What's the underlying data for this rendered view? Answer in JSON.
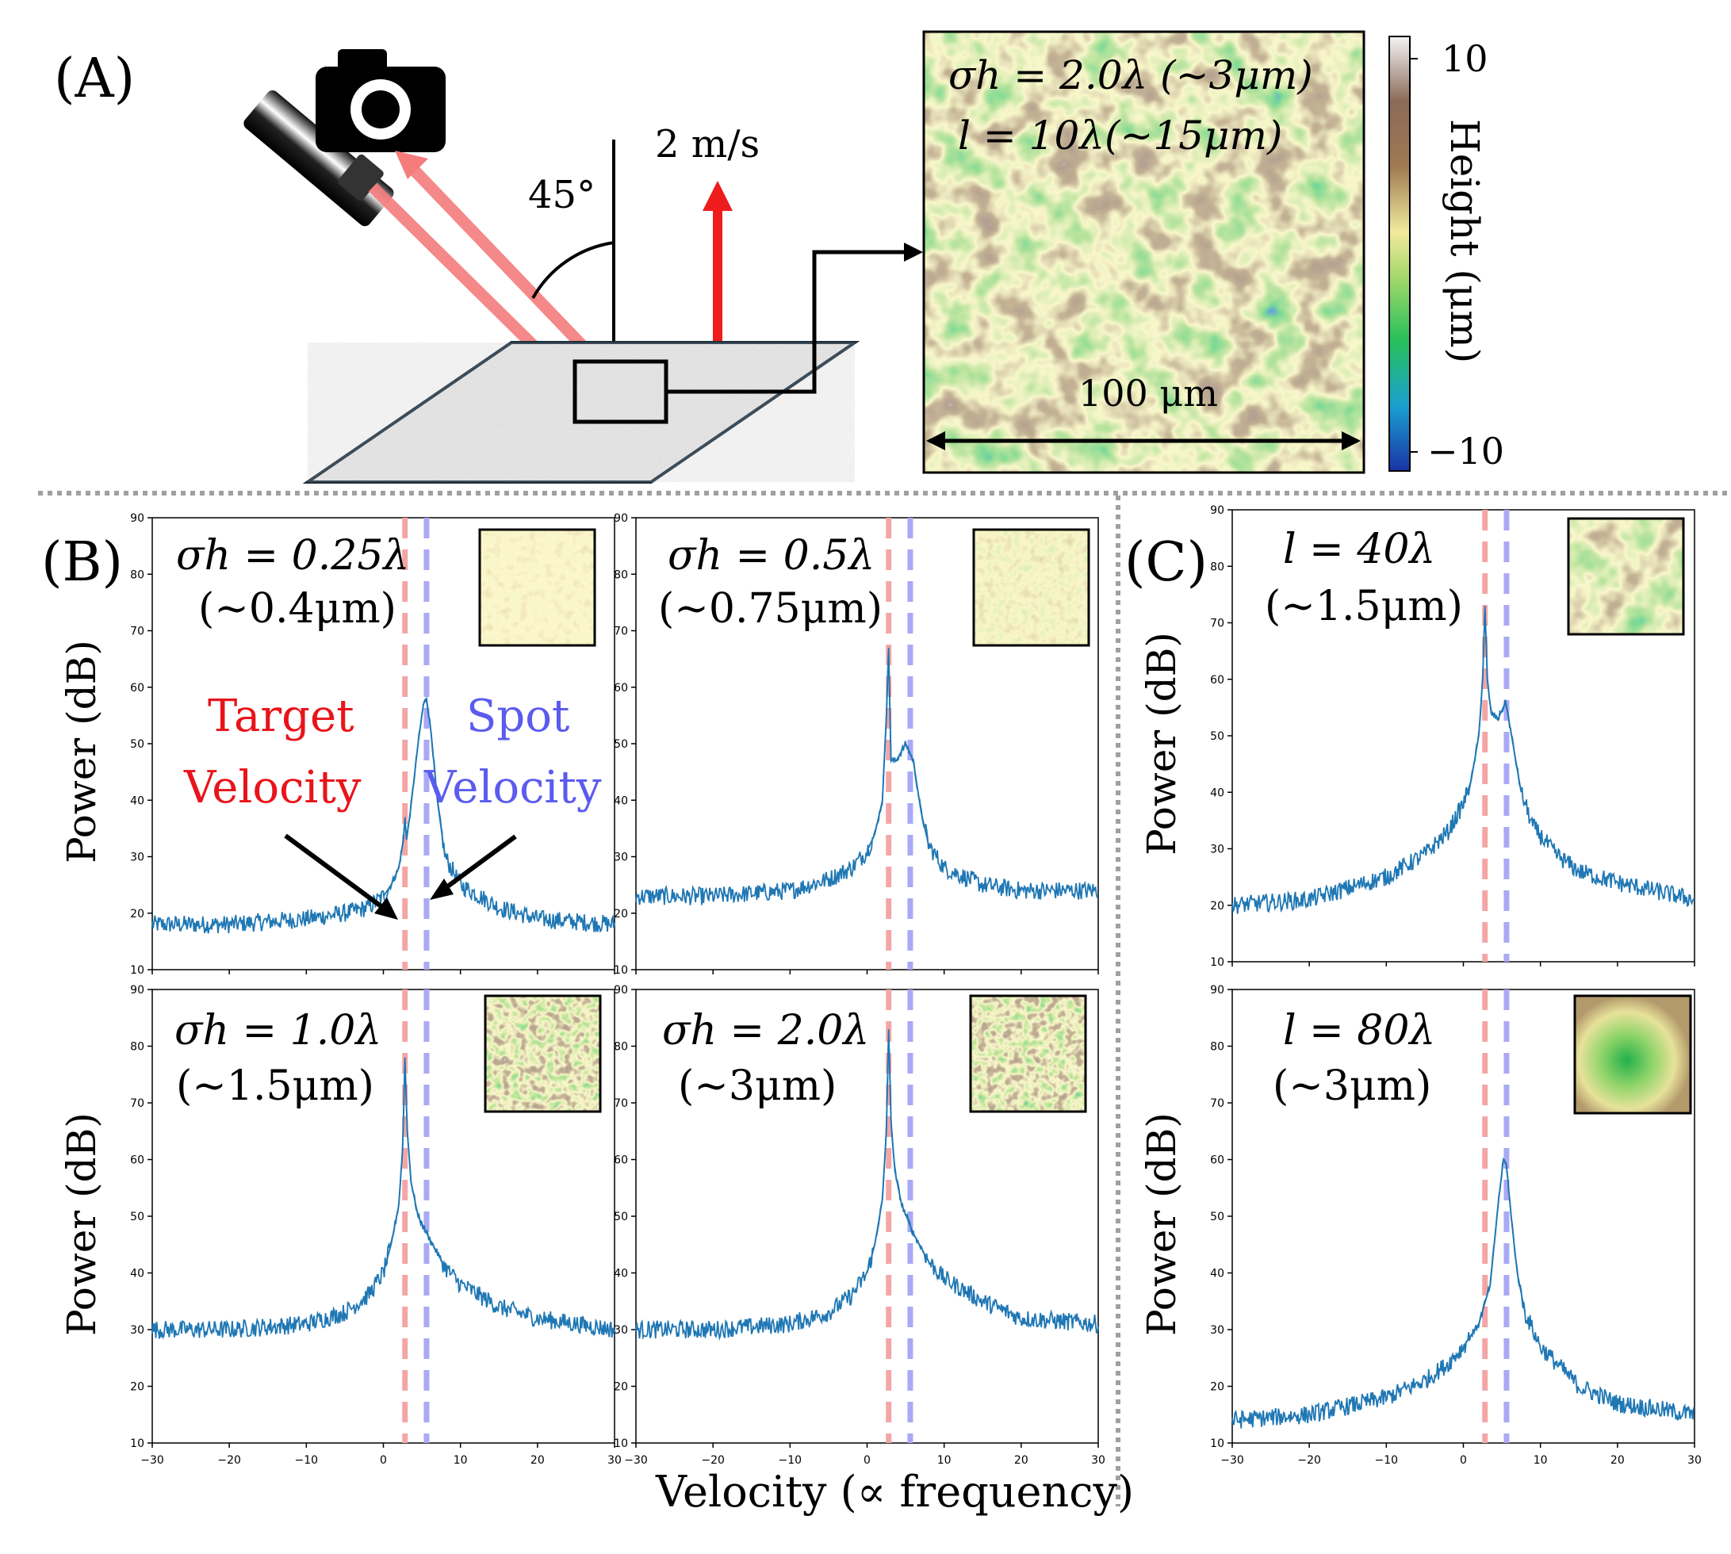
{
  "panel_labels": {
    "a": "(A)",
    "b": "(B)",
    "c": "(C)"
  },
  "setup": {
    "angle": "45°",
    "velocity": "2 m/s",
    "surface_map": {
      "line1": "σh = 2.0λ (~3μm)",
      "line2": "l = 10λ(~15μm)",
      "scale": "100 μm",
      "colorbar_label": "Height (μm)",
      "colorbar_max": "10",
      "colorbar_min": "−10"
    }
  },
  "annotations": {
    "target_1": "Target",
    "target_2": "Velocity",
    "spot_1": "Spot",
    "spot_2": "Velocity"
  },
  "colors": {
    "signal": "#1f77b4",
    "target": "#f4a6a6",
    "spot": "#a9a9f5",
    "target_text": "#e8141a",
    "spot_text": "#5b5bef"
  },
  "xlabel": "Velocity (∝ frequency)",
  "ylabel": "Power (dB)",
  "chart_data": [
    {
      "type": "line",
      "id": "b1",
      "text1": "σh = 0.25λ",
      "text2": "(~0.4μm)",
      "xlim": [
        -30,
        30
      ],
      "ylim": [
        10,
        90
      ],
      "xticks": [
        -30,
        -20,
        -10,
        0,
        10,
        20,
        30
      ],
      "yticks": [
        10,
        20,
        30,
        40,
        50,
        60,
        70,
        80,
        90
      ],
      "target_velocity": 2.8,
      "spot_velocity": 5.6,
      "series": [
        {
          "x": [
            -30,
            -20,
            -10,
            -5,
            -2,
            0,
            1,
            2,
            2.6,
            2.8,
            3.0,
            3.5,
            4.5,
            5.2,
            5.6,
            6.2,
            7,
            8,
            10,
            15,
            20,
            30
          ],
          "values": [
            18,
            18,
            19,
            20,
            21,
            23,
            25,
            28,
            33,
            37,
            33,
            38,
            50,
            57,
            58,
            52,
            40,
            30,
            25,
            21,
            19,
            18
          ]
        }
      ]
    },
    {
      "type": "line",
      "id": "b2",
      "text1": "σh = 0.5λ",
      "text2": "(~0.75μm)",
      "xlim": [
        -30,
        30
      ],
      "ylim": [
        10,
        90
      ],
      "xticks": [
        -30,
        -20,
        -10,
        0,
        10,
        20,
        30
      ],
      "yticks": [
        10,
        20,
        30,
        40,
        50,
        60,
        70,
        80,
        90
      ],
      "target_velocity": 2.8,
      "spot_velocity": 5.6,
      "series": [
        {
          "x": [
            -30,
            -20,
            -10,
            -5,
            -2,
            0,
            1,
            2,
            2.5,
            2.8,
            3.1,
            3.8,
            5,
            6,
            7,
            8,
            10,
            15,
            20,
            30
          ],
          "values": [
            23,
            23,
            24,
            26,
            28,
            31,
            34,
            40,
            55,
            67,
            47,
            47,
            50,
            47,
            38,
            32,
            28,
            25,
            24,
            24
          ]
        }
      ]
    },
    {
      "type": "line",
      "id": "b3",
      "text1": "σh = 1.0λ",
      "text2": "(~1.5μm)",
      "xlim": [
        -30,
        30
      ],
      "ylim": [
        10,
        90
      ],
      "xticks": [
        -30,
        -20,
        -10,
        0,
        10,
        20,
        30
      ],
      "yticks": [
        10,
        20,
        30,
        40,
        50,
        60,
        70,
        80,
        90
      ],
      "target_velocity": 2.8,
      "spot_velocity": 5.6,
      "series": [
        {
          "x": [
            -30,
            -20,
            -10,
            -5,
            -2,
            0,
            1,
            2,
            2.5,
            2.8,
            3.1,
            3.6,
            4.5,
            6,
            8,
            10,
            15,
            20,
            30
          ],
          "values": [
            30,
            30,
            31,
            33,
            36,
            40,
            45,
            52,
            62,
            78,
            65,
            56,
            50,
            46,
            41,
            38,
            34,
            32,
            30
          ]
        }
      ]
    },
    {
      "type": "line",
      "id": "b4",
      "text1": "σh = 2.0λ",
      "text2": "(~3μm)",
      "xlim": [
        -30,
        30
      ],
      "ylim": [
        10,
        90
      ],
      "xticks": [
        -30,
        -20,
        -10,
        0,
        10,
        20,
        30
      ],
      "yticks": [
        10,
        20,
        30,
        40,
        50,
        60,
        70,
        80,
        90
      ],
      "target_velocity": 2.8,
      "spot_velocity": 5.6,
      "series": [
        {
          "x": [
            -30,
            -20,
            -10,
            -5,
            -2,
            0,
            1,
            2,
            2.5,
            2.8,
            3.1,
            3.6,
            4.5,
            6,
            8,
            10,
            15,
            20,
            30
          ],
          "values": [
            30,
            30,
            31,
            33,
            36,
            40,
            45,
            53,
            65,
            83,
            67,
            58,
            52,
            47,
            42,
            39,
            35,
            32,
            31
          ]
        }
      ]
    },
    {
      "type": "line",
      "id": "c1",
      "text1": "l = 40λ",
      "text2": "(~1.5μm)",
      "xlim": [
        -30,
        30
      ],
      "ylim": [
        10,
        90
      ],
      "xticks": [
        -30,
        -20,
        -10,
        0,
        10,
        20,
        30
      ],
      "yticks": [
        10,
        20,
        30,
        40,
        50,
        60,
        70,
        80,
        90
      ],
      "target_velocity": 2.8,
      "spot_velocity": 5.6,
      "series": [
        {
          "x": [
            -30,
            -20,
            -10,
            -5,
            -2,
            0,
            1,
            2,
            2.5,
            2.8,
            3.1,
            3.6,
            4.5,
            5.5,
            6.5,
            7.5,
            9,
            12,
            15,
            20,
            30
          ],
          "values": [
            20,
            21,
            25,
            29,
            33,
            38,
            42,
            50,
            60,
            73,
            60,
            54,
            53,
            56,
            48,
            40,
            34,
            29,
            26,
            24,
            21
          ]
        }
      ]
    },
    {
      "type": "line",
      "id": "c2",
      "text1": "l = 80λ",
      "text2": "(~3μm)",
      "xlim": [
        -30,
        30
      ],
      "ylim": [
        10,
        90
      ],
      "xticks": [
        -30,
        -20,
        -10,
        0,
        10,
        20,
        30
      ],
      "yticks": [
        10,
        20,
        30,
        40,
        50,
        60,
        70,
        80,
        90
      ],
      "target_velocity": 2.8,
      "spot_velocity": 5.6,
      "series": [
        {
          "x": [
            -30,
            -20,
            -10,
            -5,
            -2,
            0,
            2,
            3.5,
            4.5,
            5.2,
            5.6,
            6.2,
            7,
            8,
            10,
            15,
            20,
            30
          ],
          "values": [
            14,
            15,
            18,
            21,
            24,
            27,
            31,
            38,
            52,
            60,
            59,
            50,
            40,
            33,
            27,
            20,
            17,
            15
          ]
        }
      ]
    }
  ]
}
